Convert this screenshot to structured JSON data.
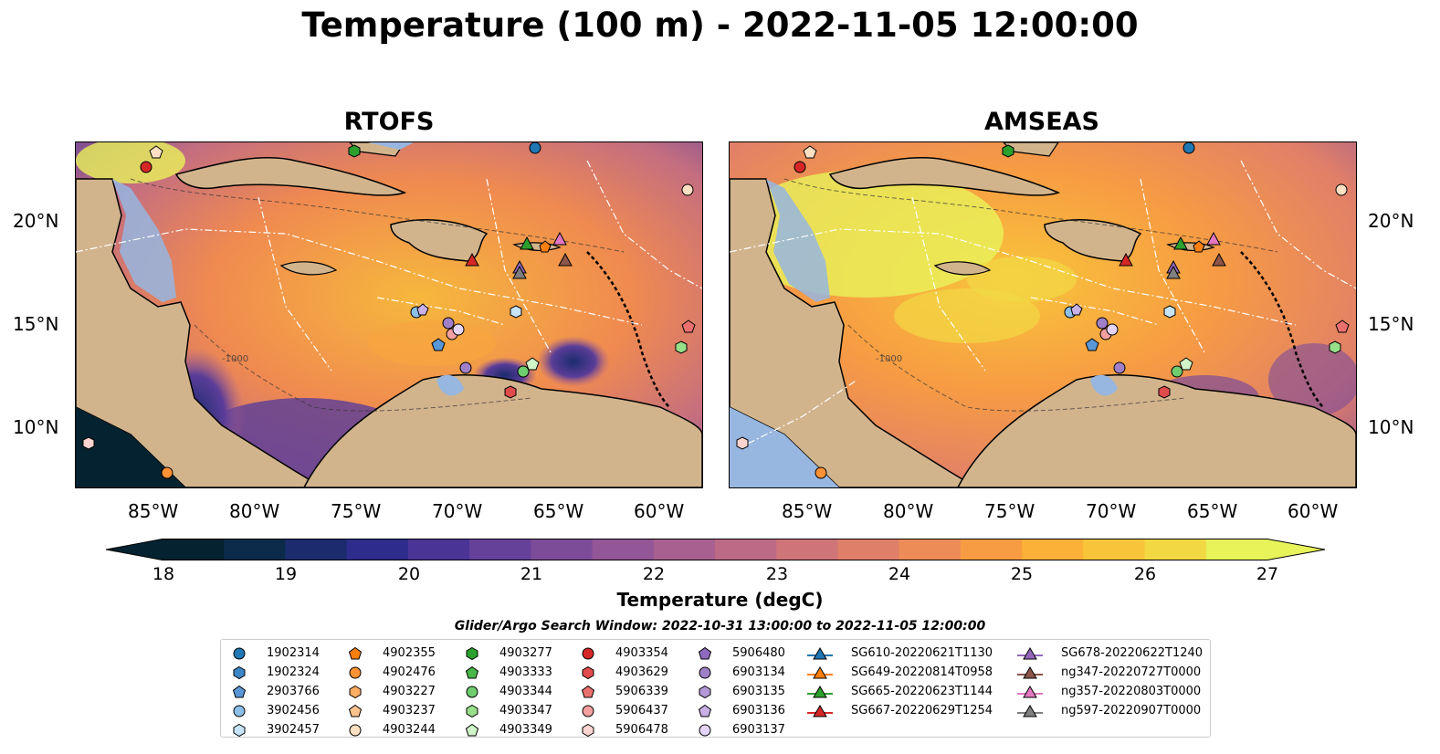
{
  "title": "Temperature (100 m) - 2022-11-05 12:00:00",
  "panels": {
    "left_title": "RTOFS",
    "right_title": "AMSEAS"
  },
  "axes": {
    "lat_labels": [
      "20°N",
      "15°N",
      "10°N"
    ],
    "lon_labels": [
      "85°W",
      "80°W",
      "75°W",
      "70°W",
      "65°W",
      "60°W"
    ],
    "depth_contour_label": "-1000"
  },
  "colorbar": {
    "label": "Temperature (degC)",
    "ticks": [
      "18",
      "19",
      "20",
      "21",
      "22",
      "23",
      "24",
      "25",
      "26",
      "27"
    ],
    "range": [
      18,
      27
    ],
    "extend": "both",
    "colors": [
      "#04222f",
      "#0c2a4a",
      "#1c2b6e",
      "#2e2c8c",
      "#4a3597",
      "#65419a",
      "#7d4c99",
      "#935696",
      "#a86090",
      "#bc6a86",
      "#cf7478",
      "#e07f69",
      "#ee8c57",
      "#f79c43",
      "#fbb038",
      "#f8c53a",
      "#f2d944",
      "#e8f35a"
    ]
  },
  "search_window": "Glider/Argo Search Window: 2022-10-31 13:00:00 to 2022-11-05 12:00:00",
  "legend": {
    "columns": [
      [
        {
          "label": "1902314",
          "marker": "circle",
          "color": "#1f77b4"
        },
        {
          "label": "1902324",
          "marker": "hexagon",
          "color": "#3d86c6"
        },
        {
          "label": "2903766",
          "marker": "pentagon",
          "color": "#5a97d6"
        },
        {
          "label": "3902456",
          "marker": "circle",
          "color": "#8cc0e8"
        },
        {
          "label": "3902457",
          "marker": "hexagon",
          "color": "#c6e3f7"
        }
      ],
      [
        {
          "label": "4902355",
          "marker": "pentagon",
          "color": "#ff7f0e"
        },
        {
          "label": "4902476",
          "marker": "circle",
          "color": "#ff9234"
        },
        {
          "label": "4903227",
          "marker": "hexagon",
          "color": "#ffad63"
        },
        {
          "label": "4903237",
          "marker": "pentagon",
          "color": "#ffc48e"
        },
        {
          "label": "4903244",
          "marker": "circle",
          "color": "#ffe0c2"
        }
      ],
      [
        {
          "label": "4903277",
          "marker": "hexagon",
          "color": "#2ca02c"
        },
        {
          "label": "4903333",
          "marker": "pentagon",
          "color": "#48b648"
        },
        {
          "label": "4903344",
          "marker": "circle",
          "color": "#6fcc6f"
        },
        {
          "label": "4903347",
          "marker": "hexagon",
          "color": "#98df8a"
        },
        {
          "label": "4903349",
          "marker": "pentagon",
          "color": "#d0f5c8"
        }
      ],
      [
        {
          "label": "4903354",
          "marker": "circle",
          "color": "#d62728"
        },
        {
          "label": "4903629",
          "marker": "hexagon",
          "color": "#e04b4b"
        },
        {
          "label": "5906339",
          "marker": "pentagon",
          "color": "#ea7070"
        },
        {
          "label": "5906437",
          "marker": "circle",
          "color": "#f5a0a0"
        },
        {
          "label": "5906478",
          "marker": "hexagon",
          "color": "#fdd4d0"
        }
      ],
      [
        {
          "label": "5906480",
          "marker": "pentagon",
          "color": "#8e6bbf"
        },
        {
          "label": "6903134",
          "marker": "circle",
          "color": "#a080c8"
        },
        {
          "label": "6903135",
          "marker": "hexagon",
          "color": "#b497d6"
        },
        {
          "label": "6903136",
          "marker": "pentagon",
          "color": "#c9b0e6"
        },
        {
          "label": "6903137",
          "marker": "circle",
          "color": "#e4d4f7"
        }
      ],
      [
        {
          "label": "SG610-20220621T1130",
          "marker": "triangle",
          "color": "#1f77b4"
        },
        {
          "label": "SG649-20220814T0958",
          "marker": "triangle",
          "color": "#ff7f0e"
        },
        {
          "label": "SG665-20220623T1144",
          "marker": "triangle",
          "color": "#2ca02c"
        },
        {
          "label": "SG667-20220629T1254",
          "marker": "triangle",
          "color": "#d62728"
        }
      ],
      [
        {
          "label": "SG678-20220622T1240",
          "marker": "triangle",
          "color": "#9467bd"
        },
        {
          "label": "ng347-20220727T0000",
          "marker": "triangle",
          "color": "#8c564b"
        },
        {
          "label": "ng357-20220803T0000",
          "marker": "triangle",
          "color": "#e377c2"
        },
        {
          "label": "ng597-20220907T0000",
          "marker": "triangle",
          "color": "#7f7f7f"
        }
      ]
    ]
  },
  "map_colors": {
    "land": "#d2b48c",
    "shelf_water": "#97b6e0",
    "coast": "#000000",
    "deep_cold": "#04222f"
  }
}
